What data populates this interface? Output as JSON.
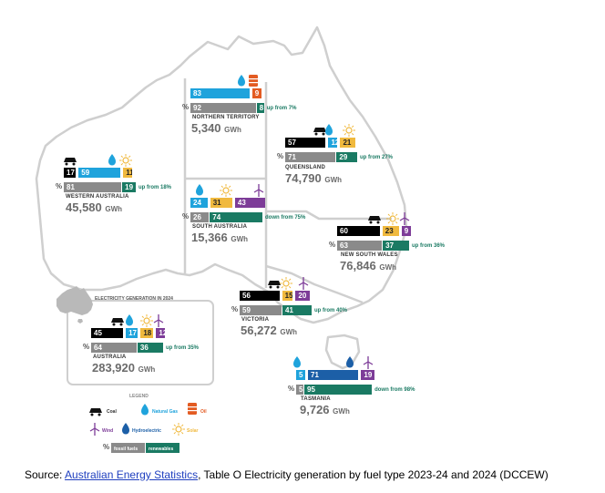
{
  "colors": {
    "coal": "#000000",
    "natural_gas": "#1fa3dc",
    "oil": "#e35b22",
    "solar": "#f0b93e",
    "wind": "#7d3c98",
    "hydroelectric": "#1c5fa7",
    "fossil_fuels": "#8a8a8a",
    "renewables": "#1a7a63",
    "map_outline": "#cfcfcf"
  },
  "percent_symbol": "%",
  "unit": "GWh",
  "regions": {
    "nt": {
      "name": "NORTHERN TERRITORY",
      "total": "5,340",
      "sources": [
        {
          "fuel": "natural_gas",
          "label": "83",
          "value": 83
        },
        {
          "fuel": "oil",
          "label": "9",
          "value": 9
        }
      ],
      "fossil": {
        "label": "92",
        "value": 92
      },
      "renewable": {
        "label": "8",
        "value": 8
      },
      "trend": "up from 7%"
    },
    "qld": {
      "name": "QUEENSLAND",
      "total": "74,790",
      "sources": [
        {
          "fuel": "coal",
          "label": "57",
          "value": 57
        },
        {
          "fuel": "natural_gas",
          "label": "12",
          "value": 12
        },
        {
          "fuel": "solar",
          "label": "21",
          "value": 21
        }
      ],
      "fossil": {
        "label": "71",
        "value": 71
      },
      "renewable": {
        "label": "29",
        "value": 29
      },
      "trend": "up from 27%"
    },
    "wa": {
      "name": "WESTERN AUSTRALIA",
      "total": "45,580",
      "sources": [
        {
          "fuel": "coal",
          "label": "17",
          "value": 17
        },
        {
          "fuel": "natural_gas",
          "label": "59",
          "value": 59
        },
        {
          "fuel": "solar",
          "label": "11",
          "value": 11
        }
      ],
      "fossil": {
        "label": "81",
        "value": 81
      },
      "renewable": {
        "label": "19",
        "value": 19
      },
      "trend": "up from 18%"
    },
    "sa": {
      "name": "SOUTH AUSTRALIA",
      "total": "15,366",
      "sources": [
        {
          "fuel": "natural_gas",
          "label": "24",
          "value": 24
        },
        {
          "fuel": "solar",
          "label": "31",
          "value": 31
        },
        {
          "fuel": "wind",
          "label": "43",
          "value": 43
        }
      ],
      "fossil": {
        "label": "26",
        "value": 26
      },
      "renewable": {
        "label": "74",
        "value": 74
      },
      "trend": "down from 75%"
    },
    "nsw": {
      "name": "NEW SOUTH WALES",
      "total": "76,846",
      "sources": [
        {
          "fuel": "coal",
          "label": "60",
          "value": 60
        },
        {
          "fuel": "solar",
          "label": "23",
          "value": 23
        },
        {
          "fuel": "wind",
          "label": "9",
          "value": 9
        }
      ],
      "fossil": {
        "label": "63",
        "value": 63
      },
      "renewable": {
        "label": "37",
        "value": 37
      },
      "trend": "up from 36%"
    },
    "vic": {
      "name": "VICTORIA",
      "total": "56,272",
      "sources": [
        {
          "fuel": "coal",
          "label": "56",
          "value": 56
        },
        {
          "fuel": "solar",
          "label": "15",
          "value": 15
        },
        {
          "fuel": "wind",
          "label": "20",
          "value": 20
        }
      ],
      "fossil": {
        "label": "59",
        "value": 59
      },
      "renewable": {
        "label": "41",
        "value": 41
      },
      "trend": "up from 40%"
    },
    "tas": {
      "name": "TASMANIA",
      "total": "9,726",
      "sources": [
        {
          "fuel": "natural_gas",
          "label": "5",
          "value": 5
        },
        {
          "fuel": "hydroelectric",
          "label": "71",
          "value": 71
        },
        {
          "fuel": "wind",
          "label": "19",
          "value": 19
        }
      ],
      "fossil": {
        "label": "5",
        "value": 5
      },
      "renewable": {
        "label": "95",
        "value": 95
      },
      "trend": "down from 98%"
    },
    "aus": {
      "name": "AUSTRALIA",
      "total": "283,920",
      "sources": [
        {
          "fuel": "coal",
          "label": "45",
          "value": 45
        },
        {
          "fuel": "natural_gas",
          "label": "17",
          "value": 17
        },
        {
          "fuel": "solar",
          "label": "18",
          "value": 18
        },
        {
          "fuel": "wind",
          "label": "12",
          "value": 12
        }
      ],
      "fossil": {
        "label": "64",
        "value": 64
      },
      "renewable": {
        "label": "36",
        "value": 36
      },
      "trend": "up from 35%"
    }
  },
  "summary_title": "ELECTRICITY GENERATION IN 2024",
  "legend": {
    "title": "LEGEND",
    "coal": "Coal",
    "natural_gas": "Natural Gas",
    "oil": "Oil",
    "wind": "Wind",
    "hydroelectric": "Hydroelectric",
    "solar": "Solar",
    "fossil_fuels": "fossil fuels",
    "renewables": "renewables"
  },
  "source": {
    "prefix": "Source: ",
    "link_text": "Australian Energy Statistics",
    "suffix": ", Table O Electricity generation by fuel type 2023-24 and 2024 (DCCEW)"
  }
}
